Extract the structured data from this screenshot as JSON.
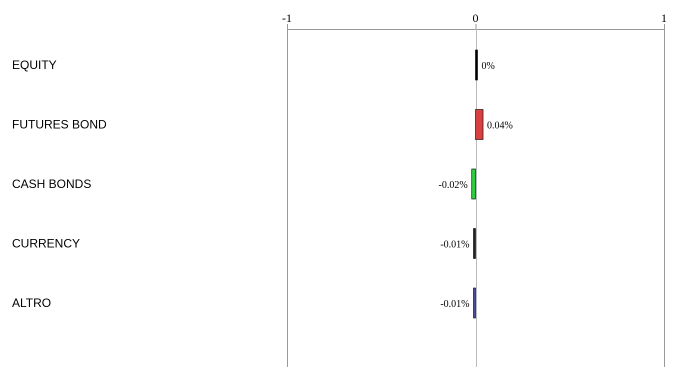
{
  "chart_data": {
    "type": "bar",
    "orientation": "horizontal",
    "categories": [
      "EQUITY",
      "FUTURES BOND",
      "CASH BONDS",
      "CURRENCY",
      "ALTRO"
    ],
    "values": [
      0.0,
      0.04,
      -0.02,
      -0.01,
      -0.01
    ],
    "data_labels": [
      "0%",
      "0.04%",
      "-0.02%",
      "-0.01%",
      "-0.01%"
    ],
    "colors": [
      "#000000",
      "#d94040",
      "#2ecc40",
      "#222222",
      "#4a4aa0"
    ],
    "xlim": [
      -1,
      1
    ],
    "x_ticks": [
      -1,
      0,
      1
    ],
    "x_tick_labels": [
      "-1",
      "0",
      "1"
    ],
    "axis_position": "top",
    "grid": false,
    "legend": "none",
    "title": "",
    "xlabel": "",
    "ylabel": ""
  }
}
